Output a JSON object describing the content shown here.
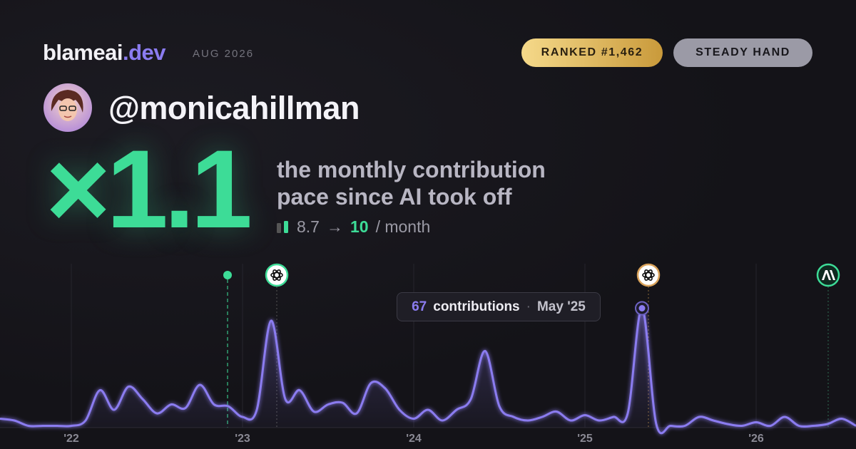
{
  "brand": {
    "name": "blameai",
    "tld": ".dev"
  },
  "date": "AUG 2026",
  "badges": [
    "RANKED #1,462",
    "STEADY HAND"
  ],
  "username": "@monicahillman",
  "multiplier": "×1.1",
  "caption": [
    "the monthly contribution",
    "pace since AI took off"
  ],
  "pace": {
    "before": 8.7,
    "arrow": "→",
    "after": 10,
    "unit": "/ month"
  },
  "tooltip": {
    "label": "contributions",
    "separator": "·",
    "month": "May '25"
  },
  "chart_data": {
    "type": "line",
    "categories": [
      null,
      null,
      null,
      null,
      null,
      "'22",
      null,
      null,
      null,
      null,
      null,
      null,
      null,
      null,
      null,
      null,
      null,
      "'23",
      null,
      null,
      null,
      null,
      null,
      null,
      null,
      null,
      null,
      null,
      null,
      "'24",
      null,
      null,
      null,
      null,
      null,
      null,
      null,
      null,
      null,
      null,
      null,
      "'25",
      null,
      null,
      null,
      null,
      null,
      null,
      null,
      null,
      null,
      null,
      null,
      "'26",
      null,
      null,
      null,
      null,
      null,
      null,
      null
    ],
    "values": [
      5,
      4,
      1,
      1,
      1,
      1,
      4,
      21,
      10,
      23,
      16,
      8,
      13,
      11,
      24,
      13,
      12,
      6,
      10,
      60,
      16,
      21,
      9,
      13,
      14,
      8,
      25,
      22,
      10,
      5,
      10,
      4,
      10,
      16,
      43,
      12,
      6,
      4,
      6,
      9,
      4,
      7,
      4,
      6,
      8,
      67,
      2,
      1,
      1,
      6,
      4,
      2,
      1,
      3,
      1,
      6,
      1,
      1,
      2,
      5,
      1
    ],
    "color": "#8b7cf0",
    "ylim": [
      0,
      80
    ]
  }
}
